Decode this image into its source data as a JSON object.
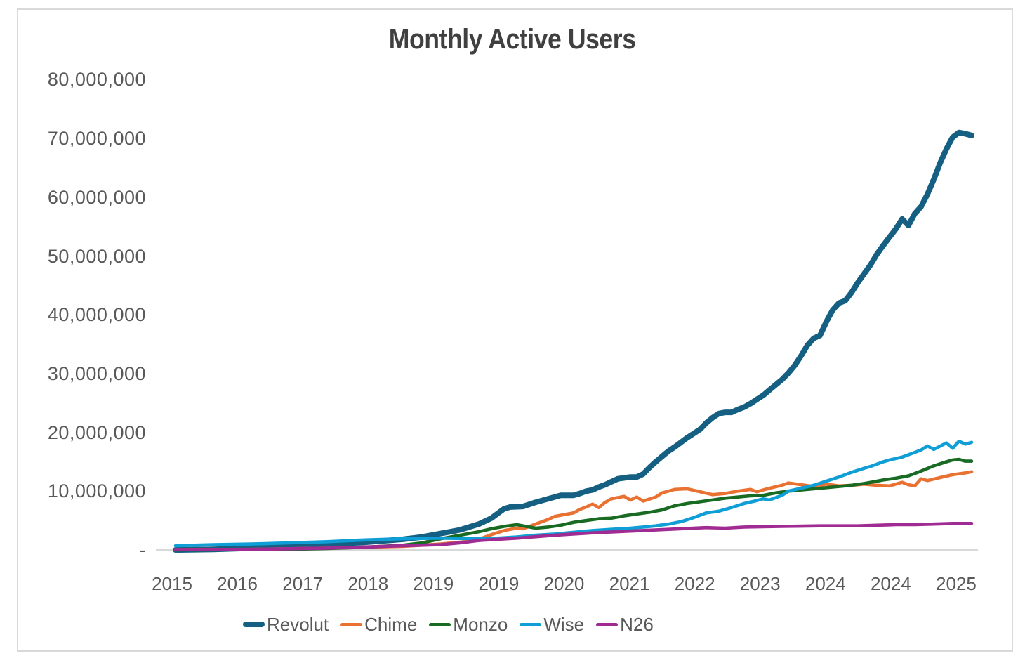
{
  "styles": {
    "background": "#FFFFFF",
    "frame_border_color": "#D9D9D9",
    "title_color": "#404040",
    "axis_text_color": "#595959",
    "axis_line_color": "#D9D9D9"
  },
  "chart_data": {
    "type": "line",
    "title": "Monthly Active Users",
    "grid": false,
    "legend_position": "bottom",
    "x_axis": {
      "tick_labels": [
        "2015",
        "2016",
        "2017",
        "2018",
        "2019",
        "2019",
        "2020",
        "2021",
        "2022",
        "2023",
        "2024",
        "2024",
        "2025"
      ],
      "time_range": [
        "2015-01",
        "2025-07"
      ]
    },
    "y_axis": {
      "unit": "users",
      "range": [
        0,
        85000000
      ],
      "ticks": [
        {
          "label": "-",
          "millions": 0
        },
        {
          "label": "10,000,000",
          "millions": 10
        },
        {
          "label": "20,000,000",
          "millions": 20
        },
        {
          "label": "30,000,000",
          "millions": 30
        },
        {
          "label": "40,000,000",
          "millions": 40
        },
        {
          "label": "50,000,000",
          "millions": 50
        },
        {
          "label": "60,000,000",
          "millions": 60
        },
        {
          "label": "70,000,000",
          "millions": 70
        },
        {
          "label": "80,000,000",
          "millions": 80
        }
      ]
    },
    "series": [
      {
        "name": "Revolut",
        "color": "#156082",
        "line_width": 8,
        "points_unit": "millions of users",
        "points": [
          [
            "2015-01",
            0.0
          ],
          [
            "2015-07",
            0.1
          ],
          [
            "2016-01",
            0.3
          ],
          [
            "2016-07",
            0.5
          ],
          [
            "2017-01",
            0.9
          ],
          [
            "2017-07",
            1.3
          ],
          [
            "2018-01",
            1.8
          ],
          [
            "2018-04",
            2.2
          ],
          [
            "2018-07",
            2.8
          ],
          [
            "2018-10",
            3.4
          ],
          [
            "2019-01",
            4.4
          ],
          [
            "2019-03",
            5.4
          ],
          [
            "2019-04",
            6.2
          ],
          [
            "2019-05",
            7.0
          ],
          [
            "2019-06",
            7.3
          ],
          [
            "2019-08",
            7.4
          ],
          [
            "2019-10",
            8.1
          ],
          [
            "2019-12",
            8.7
          ],
          [
            "2020-02",
            9.3
          ],
          [
            "2020-04",
            9.3
          ],
          [
            "2020-05",
            9.6
          ],
          [
            "2020-06",
            10.0
          ],
          [
            "2020-07",
            10.2
          ],
          [
            "2020-08",
            10.7
          ],
          [
            "2020-09",
            11.1
          ],
          [
            "2020-10",
            11.6
          ],
          [
            "2020-11",
            12.1
          ],
          [
            "2021-01",
            12.4
          ],
          [
            "2021-02",
            12.4
          ],
          [
            "2021-03",
            12.9
          ],
          [
            "2021-04",
            14.0
          ],
          [
            "2021-05",
            15.0
          ],
          [
            "2021-06",
            15.9
          ],
          [
            "2021-07",
            16.8
          ],
          [
            "2021-08",
            17.5
          ],
          [
            "2021-09",
            18.3
          ],
          [
            "2021-10",
            19.1
          ],
          [
            "2021-11",
            19.8
          ],
          [
            "2021-12",
            20.5
          ],
          [
            "2022-01",
            21.6
          ],
          [
            "2022-02",
            22.5
          ],
          [
            "2022-03",
            23.2
          ],
          [
            "2022-04",
            23.4
          ],
          [
            "2022-05",
            23.4
          ],
          [
            "2022-06",
            23.9
          ],
          [
            "2022-07",
            24.3
          ],
          [
            "2022-08",
            24.9
          ],
          [
            "2022-09",
            25.6
          ],
          [
            "2022-10",
            26.3
          ],
          [
            "2022-11",
            27.2
          ],
          [
            "2022-12",
            28.1
          ],
          [
            "2023-01",
            29.0
          ],
          [
            "2023-02",
            30.1
          ],
          [
            "2023-03",
            31.4
          ],
          [
            "2023-04",
            33.0
          ],
          [
            "2023-05",
            34.8
          ],
          [
            "2023-06",
            36.0
          ],
          [
            "2023-07",
            36.5
          ],
          [
            "2023-08",
            38.8
          ],
          [
            "2023-09",
            40.8
          ],
          [
            "2023-10",
            42.0
          ],
          [
            "2023-11",
            42.4
          ],
          [
            "2023-12",
            43.8
          ],
          [
            "2024-01",
            45.5
          ],
          [
            "2024-02",
            47.0
          ],
          [
            "2024-03",
            48.5
          ],
          [
            "2024-04",
            50.3
          ],
          [
            "2024-05",
            51.8
          ],
          [
            "2024-06",
            53.2
          ],
          [
            "2024-07",
            54.6
          ],
          [
            "2024-08",
            56.3
          ],
          [
            "2024-09",
            55.2
          ],
          [
            "2024-10",
            57.2
          ],
          [
            "2024-11",
            58.4
          ],
          [
            "2024-12",
            60.5
          ],
          [
            "2025-01",
            63.0
          ],
          [
            "2025-02",
            65.8
          ],
          [
            "2025-03",
            68.2
          ],
          [
            "2025-04",
            70.2
          ],
          [
            "2025-05",
            71.0
          ],
          [
            "2025-06",
            70.8
          ],
          [
            "2025-07",
            70.5
          ]
        ]
      },
      {
        "name": "Chime",
        "color": "#E97132",
        "line_width": 4.6,
        "points_unit": "millions of users",
        "points": [
          [
            "2015-01",
            0.05
          ],
          [
            "2016-01",
            0.1
          ],
          [
            "2016-07",
            0.2
          ],
          [
            "2017-01",
            0.3
          ],
          [
            "2017-07",
            0.45
          ],
          [
            "2018-01",
            0.6
          ],
          [
            "2018-07",
            1.0
          ],
          [
            "2018-10",
            1.3
          ],
          [
            "2019-01",
            1.8
          ],
          [
            "2019-03",
            2.6
          ],
          [
            "2019-05",
            3.3
          ],
          [
            "2019-07",
            3.7
          ],
          [
            "2019-08",
            3.6
          ],
          [
            "2019-10",
            4.4
          ],
          [
            "2019-12",
            5.2
          ],
          [
            "2020-01",
            5.7
          ],
          [
            "2020-03",
            6.1
          ],
          [
            "2020-04",
            6.3
          ],
          [
            "2020-05",
            6.9
          ],
          [
            "2020-06",
            7.3
          ],
          [
            "2020-07",
            7.8
          ],
          [
            "2020-08",
            7.2
          ],
          [
            "2020-09",
            8.1
          ],
          [
            "2020-10",
            8.7
          ],
          [
            "2020-12",
            9.1
          ],
          [
            "2021-01",
            8.5
          ],
          [
            "2021-02",
            9.0
          ],
          [
            "2021-03",
            8.3
          ],
          [
            "2021-05",
            9.0
          ],
          [
            "2021-06",
            9.7
          ],
          [
            "2021-08",
            10.3
          ],
          [
            "2021-10",
            10.4
          ],
          [
            "2021-12",
            9.9
          ],
          [
            "2022-02",
            9.4
          ],
          [
            "2022-04",
            9.6
          ],
          [
            "2022-06",
            10.0
          ],
          [
            "2022-08",
            10.3
          ],
          [
            "2022-09",
            9.9
          ],
          [
            "2022-11",
            10.5
          ],
          [
            "2023-01",
            11.0
          ],
          [
            "2023-02",
            11.4
          ],
          [
            "2023-04",
            11.1
          ],
          [
            "2023-06",
            10.8
          ],
          [
            "2023-08",
            11.2
          ],
          [
            "2023-10",
            10.9
          ],
          [
            "2023-12",
            11.0
          ],
          [
            "2024-02",
            11.2
          ],
          [
            "2024-04",
            11.0
          ],
          [
            "2024-06",
            10.9
          ],
          [
            "2024-08",
            11.5
          ],
          [
            "2024-09",
            11.1
          ],
          [
            "2024-10",
            10.9
          ],
          [
            "2024-11",
            12.1
          ],
          [
            "2024-12",
            11.8
          ],
          [
            "2025-02",
            12.3
          ],
          [
            "2025-04",
            12.8
          ],
          [
            "2025-06",
            13.1
          ],
          [
            "2025-07",
            13.3
          ]
        ]
      },
      {
        "name": "Monzo",
        "color": "#196B24",
        "line_width": 4.6,
        "points_unit": "millions of users",
        "points": [
          [
            "2015-01",
            0.0
          ],
          [
            "2016-01",
            0.05
          ],
          [
            "2016-07",
            0.1
          ],
          [
            "2017-01",
            0.25
          ],
          [
            "2017-07",
            0.45
          ],
          [
            "2018-01",
            0.8
          ],
          [
            "2018-04",
            1.2
          ],
          [
            "2018-07",
            1.9
          ],
          [
            "2018-10",
            2.5
          ],
          [
            "2019-01",
            3.1
          ],
          [
            "2019-03",
            3.6
          ],
          [
            "2019-05",
            4.0
          ],
          [
            "2019-07",
            4.3
          ],
          [
            "2019-09",
            3.9
          ],
          [
            "2019-10",
            3.7
          ],
          [
            "2019-12",
            3.9
          ],
          [
            "2020-02",
            4.2
          ],
          [
            "2020-04",
            4.7
          ],
          [
            "2020-06",
            5.0
          ],
          [
            "2020-08",
            5.3
          ],
          [
            "2020-10",
            5.4
          ],
          [
            "2020-12",
            5.8
          ],
          [
            "2021-02",
            6.1
          ],
          [
            "2021-04",
            6.4
          ],
          [
            "2021-06",
            6.8
          ],
          [
            "2021-08",
            7.5
          ],
          [
            "2021-10",
            7.9
          ],
          [
            "2021-12",
            8.2
          ],
          [
            "2022-02",
            8.5
          ],
          [
            "2022-04",
            8.8
          ],
          [
            "2022-06",
            9.0
          ],
          [
            "2022-08",
            9.2
          ],
          [
            "2022-10",
            9.3
          ],
          [
            "2022-12",
            9.7
          ],
          [
            "2023-02",
            10.0
          ],
          [
            "2023-04",
            10.2
          ],
          [
            "2023-06",
            10.4
          ],
          [
            "2023-08",
            10.6
          ],
          [
            "2023-10",
            10.8
          ],
          [
            "2023-12",
            11.0
          ],
          [
            "2024-02",
            11.3
          ],
          [
            "2024-03",
            11.5
          ],
          [
            "2024-05",
            11.9
          ],
          [
            "2024-07",
            12.2
          ],
          [
            "2024-09",
            12.6
          ],
          [
            "2024-11",
            13.4
          ],
          [
            "2025-01",
            14.3
          ],
          [
            "2025-03",
            15.0
          ],
          [
            "2025-04",
            15.3
          ],
          [
            "2025-05",
            15.4
          ],
          [
            "2025-06",
            15.1
          ],
          [
            "2025-07",
            15.1
          ]
        ]
      },
      {
        "name": "Wise",
        "color": "#0F9ED5",
        "line_width": 4.6,
        "points_unit": "millions of users",
        "points": [
          [
            "2015-01",
            0.7
          ],
          [
            "2015-07",
            0.9
          ],
          [
            "2016-01",
            1.0
          ],
          [
            "2016-07",
            1.2
          ],
          [
            "2017-01",
            1.4
          ],
          [
            "2017-07",
            1.7
          ],
          [
            "2018-01",
            1.9
          ],
          [
            "2018-07",
            2.0
          ],
          [
            "2019-01",
            1.9
          ],
          [
            "2019-04",
            2.0
          ],
          [
            "2019-07",
            2.2
          ],
          [
            "2019-10",
            2.5
          ],
          [
            "2020-01",
            2.7
          ],
          [
            "2020-04",
            3.0
          ],
          [
            "2020-07",
            3.3
          ],
          [
            "2020-10",
            3.5
          ],
          [
            "2021-01",
            3.7
          ],
          [
            "2021-03",
            3.9
          ],
          [
            "2021-05",
            4.1
          ],
          [
            "2021-07",
            4.4
          ],
          [
            "2021-09",
            4.8
          ],
          [
            "2021-11",
            5.5
          ],
          [
            "2022-01",
            6.3
          ],
          [
            "2022-03",
            6.6
          ],
          [
            "2022-05",
            7.2
          ],
          [
            "2022-07",
            7.9
          ],
          [
            "2022-09",
            8.4
          ],
          [
            "2022-10",
            8.7
          ],
          [
            "2022-11",
            8.5
          ],
          [
            "2023-01",
            9.3
          ],
          [
            "2023-02",
            10.0
          ],
          [
            "2023-04",
            10.5
          ],
          [
            "2023-06",
            11.0
          ],
          [
            "2023-08",
            11.7
          ],
          [
            "2023-10",
            12.4
          ],
          [
            "2023-12",
            13.2
          ],
          [
            "2024-02",
            13.9
          ],
          [
            "2024-03",
            14.2
          ],
          [
            "2024-05",
            15.0
          ],
          [
            "2024-06",
            15.3
          ],
          [
            "2024-08",
            15.8
          ],
          [
            "2024-10",
            16.6
          ],
          [
            "2024-11",
            17.0
          ],
          [
            "2024-12",
            17.7
          ],
          [
            "2025-01",
            17.1
          ],
          [
            "2025-03",
            18.2
          ],
          [
            "2025-04",
            17.3
          ],
          [
            "2025-05",
            18.5
          ],
          [
            "2025-06",
            18.0
          ],
          [
            "2025-07",
            18.3
          ]
        ]
      },
      {
        "name": "N26",
        "color": "#A02B93",
        "line_width": 4.6,
        "points_unit": "millions of users",
        "points": [
          [
            "2015-01",
            0.05
          ],
          [
            "2016-01",
            0.1
          ],
          [
            "2016-07",
            0.2
          ],
          [
            "2017-01",
            0.3
          ],
          [
            "2017-07",
            0.5
          ],
          [
            "2018-01",
            0.7
          ],
          [
            "2018-07",
            0.9
          ],
          [
            "2018-10",
            1.2
          ],
          [
            "2019-01",
            1.6
          ],
          [
            "2019-07",
            2.0
          ],
          [
            "2020-01",
            2.5
          ],
          [
            "2020-07",
            2.9
          ],
          [
            "2021-01",
            3.2
          ],
          [
            "2021-07",
            3.5
          ],
          [
            "2022-01",
            3.8
          ],
          [
            "2022-04",
            3.7
          ],
          [
            "2022-07",
            3.9
          ],
          [
            "2023-01",
            4.0
          ],
          [
            "2023-07",
            4.1
          ],
          [
            "2024-01",
            4.1
          ],
          [
            "2024-04",
            4.2
          ],
          [
            "2024-07",
            4.3
          ],
          [
            "2024-10",
            4.3
          ],
          [
            "2025-01",
            4.4
          ],
          [
            "2025-04",
            4.5
          ],
          [
            "2025-07",
            4.5
          ]
        ]
      }
    ]
  }
}
